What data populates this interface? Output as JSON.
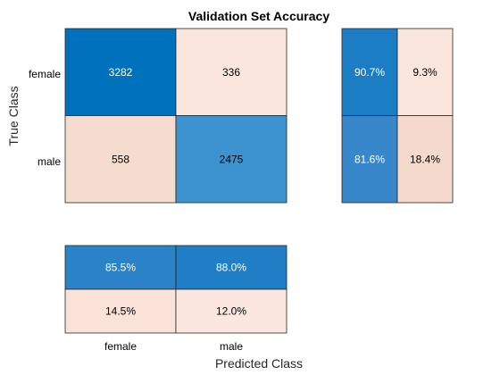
{
  "chart_data": {
    "type": "heatmap",
    "title": "Validation Set Accuracy",
    "xlabel": "Predicted Class",
    "ylabel": "True Class",
    "classes": [
      "female",
      "male"
    ],
    "confusion_matrix": [
      [
        3282,
        336
      ],
      [
        558,
        2475
      ]
    ],
    "row_summary": {
      "values": [
        [
          "90.7%",
          "9.3%"
        ],
        [
          "81.6%",
          "18.4%"
        ]
      ],
      "fractions": [
        [
          0.907,
          0.093
        ],
        [
          0.816,
          0.184
        ]
      ]
    },
    "column_summary": {
      "values": [
        [
          "85.5%",
          "88.0%"
        ],
        [
          "14.5%",
          "12.0%"
        ]
      ],
      "fractions": [
        [
          0.855,
          0.88
        ],
        [
          0.145,
          0.12
        ]
      ]
    },
    "colors": {
      "correct_high": "#0072bd",
      "correct_low": "#4a9ad4",
      "incorrect_light": "#fbe6de",
      "incorrect_mid": "#f3d3c4",
      "border": "#262626"
    }
  }
}
